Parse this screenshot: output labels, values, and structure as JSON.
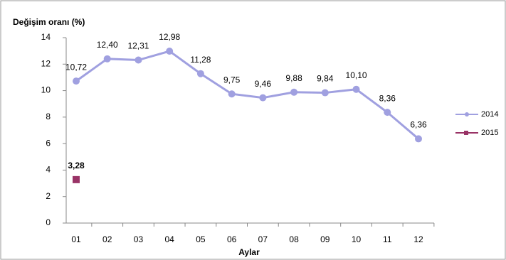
{
  "chart_data": {
    "type": "line",
    "y_label": "Değişim oranı (%)",
    "x_label": "Aylar",
    "categories": [
      "01",
      "02",
      "03",
      "04",
      "05",
      "06",
      "07",
      "08",
      "09",
      "10",
      "11",
      "12"
    ],
    "series": [
      {
        "name": "2014",
        "color": "#a0a0e0",
        "marker": "circle",
        "values": [
          10.72,
          12.4,
          12.31,
          12.98,
          11.28,
          9.75,
          9.46,
          9.88,
          9.84,
          10.1,
          8.36,
          6.36
        ],
        "value_labels": [
          "10,72",
          "12,40",
          "12,31",
          "12,98",
          "11,28",
          "9,75",
          "9,46",
          "9,88",
          "9,84",
          "10,10",
          "8,36",
          "6,36"
        ]
      },
      {
        "name": "2015",
        "color": "#993366",
        "marker": "square",
        "values": [
          3.28,
          null,
          null,
          null,
          null,
          null,
          null,
          null,
          null,
          null,
          null,
          null
        ],
        "value_labels": [
          "3,28",
          null,
          null,
          null,
          null,
          null,
          null,
          null,
          null,
          null,
          null,
          null
        ]
      }
    ],
    "ylim": [
      0,
      14
    ],
    "yticks": [
      0,
      2,
      4,
      6,
      8,
      10,
      12,
      14
    ],
    "grid": false,
    "legend": "right"
  }
}
